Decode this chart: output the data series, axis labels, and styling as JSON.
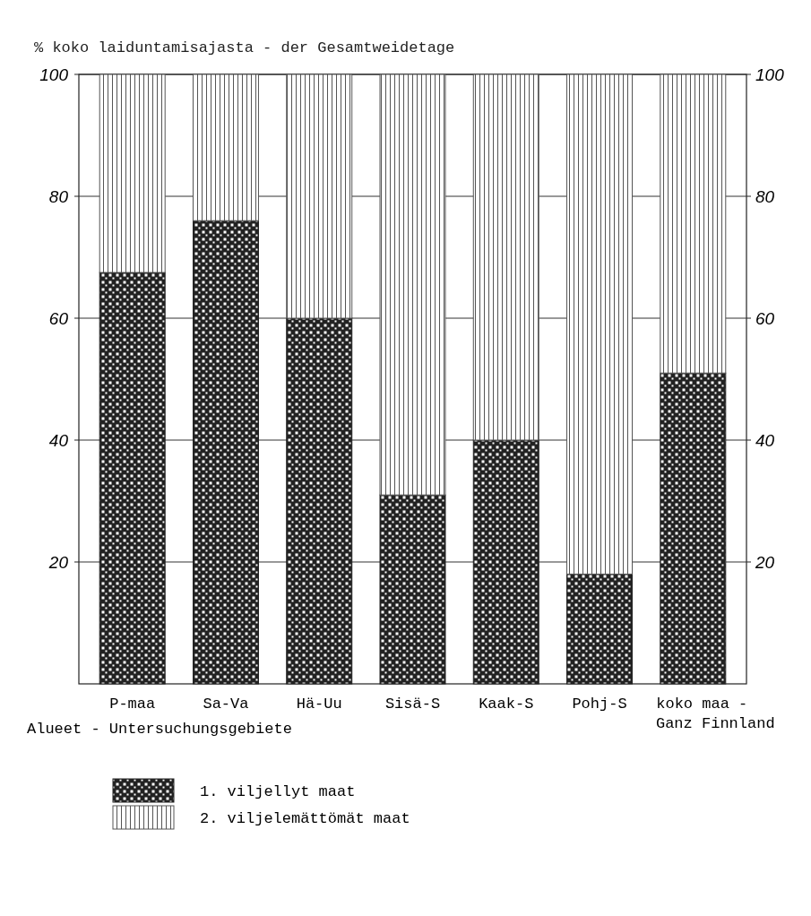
{
  "chart_data": {
    "type": "bar",
    "stacked": true,
    "ylabel": "% koko laiduntamisajasta - der Gesamtweidetage",
    "xlabel": "Alueet - Untersuchungsgebiete",
    "categories": [
      "P-maa",
      "Sa-Va",
      "Hä-Uu",
      "Sisä-S",
      "Kaak-S",
      "Pohj-S",
      "koko maa - Ganz Finnland"
    ],
    "series": [
      {
        "name": "1. viljellyt maat",
        "color": "#222222",
        "values": [
          67.5,
          76,
          60,
          31,
          40,
          18,
          51
        ]
      },
      {
        "name": "2. viljelemättömät maat",
        "color": "#555555",
        "values": [
          32.5,
          24,
          40,
          69,
          60,
          82,
          49
        ]
      }
    ],
    "ylim": [
      0,
      100
    ],
    "yticks": [
      20,
      40,
      60,
      80,
      100
    ],
    "y2lim": [
      0,
      100
    ],
    "y2ticks": [
      20,
      40,
      60,
      80,
      100
    ],
    "grid": "y",
    "legend": "bottom"
  }
}
